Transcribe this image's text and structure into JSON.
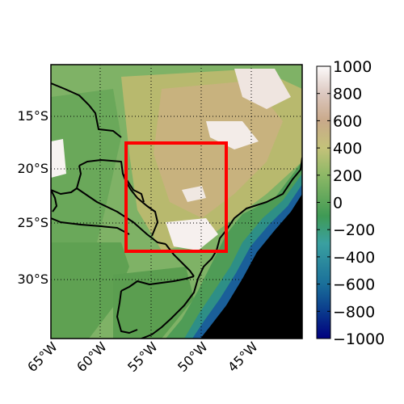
{
  "map": {
    "lat_labels": [
      "15°S",
      "20°S",
      "25°S",
      "30°S"
    ],
    "lon_labels": [
      "65°W",
      "60°W",
      "55°W",
      "50°W",
      "45°W"
    ],
    "lat_values": [
      -15,
      -20,
      -25,
      -30
    ],
    "lon_values": [
      -65,
      -60,
      -55,
      -50,
      -45
    ],
    "extent": {
      "lon_min": -65,
      "lon_max": -40,
      "lat_min": -35.5,
      "lat_max": -9.5
    },
    "highlight_box": {
      "lon_min": -57.5,
      "lon_max": -47.5,
      "lat_min": -27.5,
      "lat_max": -17.5,
      "color": "#ff0000"
    },
    "gridlines": "dotted"
  },
  "colorbar": {
    "tick_labels": [
      "1000",
      "800",
      "600",
      "400",
      "200",
      "0",
      "−200",
      "−400",
      "−600",
      "−800",
      "−1000"
    ],
    "tick_values": [
      1000,
      800,
      600,
      400,
      200,
      0,
      -200,
      -400,
      -600,
      -800,
      -1000
    ],
    "range": [
      -1000,
      1000
    ],
    "colormap": [
      "#00007f",
      "#0a3a8c",
      "#1a6f9a",
      "#3aa0a0",
      "#48a35a",
      "#6fae5a",
      "#9cbb6a",
      "#c9c27a",
      "#d6b58c",
      "#dcc8c0",
      "#fcfafa"
    ]
  }
}
